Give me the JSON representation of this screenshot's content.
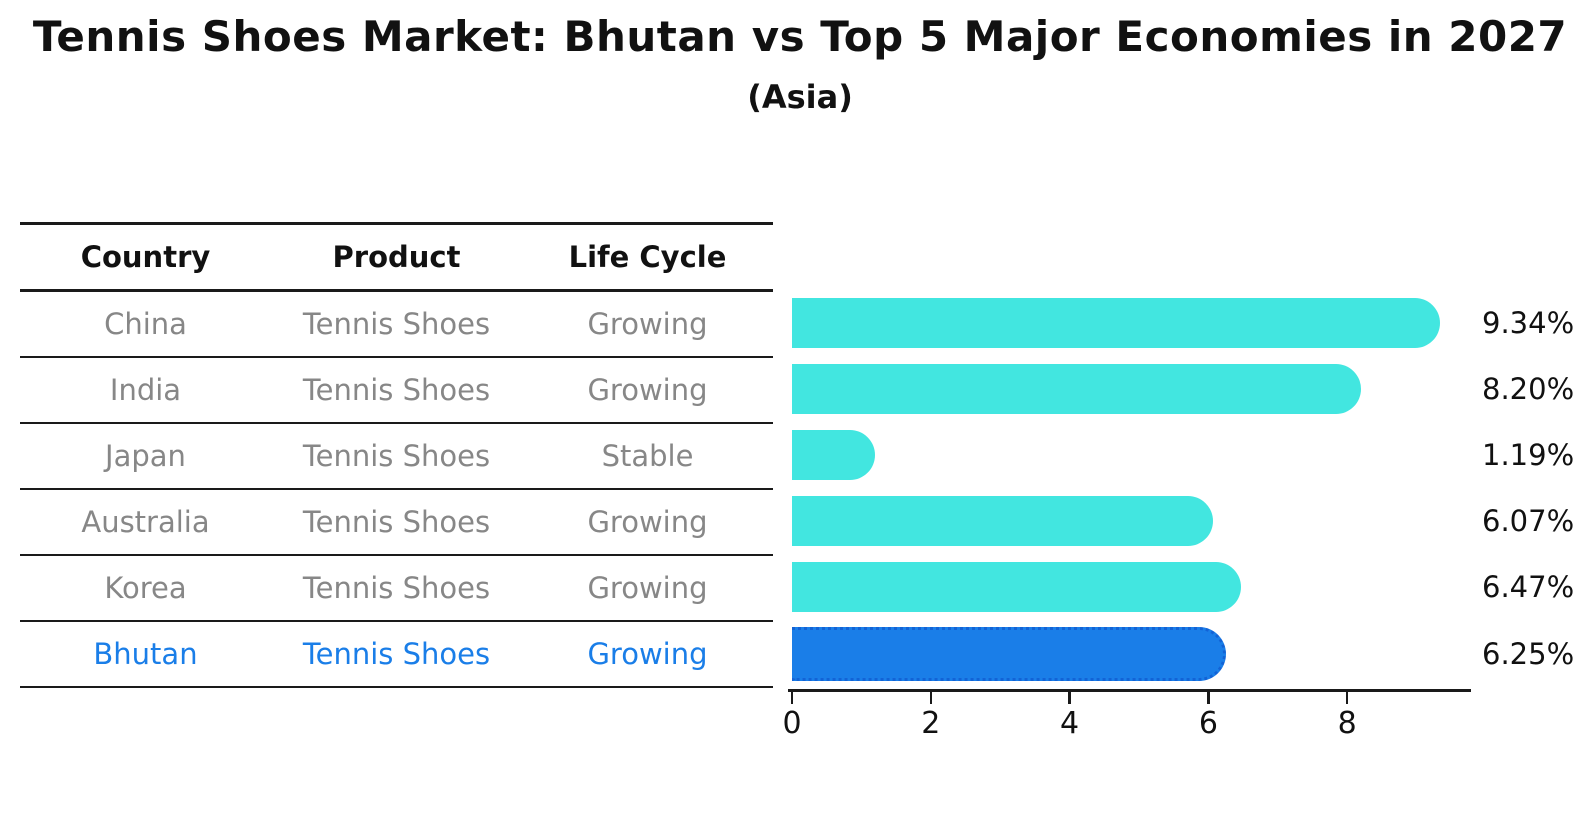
{
  "title": "Tennis Shoes Market: Bhutan vs Top 5 Major Economies in 2027",
  "subtitle": "(Asia)",
  "table": {
    "headers": [
      "Country",
      "Product",
      "Life Cycle"
    ],
    "rows": [
      {
        "country": "China",
        "product": "Tennis Shoes",
        "life_cycle": "Growing",
        "highlight": false
      },
      {
        "country": "India",
        "product": "Tennis Shoes",
        "life_cycle": "Growing",
        "highlight": false
      },
      {
        "country": "Japan",
        "product": "Tennis Shoes",
        "life_cycle": "Stable",
        "highlight": false
      },
      {
        "country": "Australia",
        "product": "Tennis Shoes",
        "life_cycle": "Growing",
        "highlight": false
      },
      {
        "country": "Korea",
        "product": "Tennis Shoes",
        "life_cycle": "Growing",
        "highlight": false
      },
      {
        "country": "Bhutan",
        "product": "Tennis Shoes",
        "life_cycle": "Growing",
        "highlight": true
      }
    ]
  },
  "chart_data": {
    "type": "bar",
    "orientation": "horizontal",
    "title": "Tennis Shoes Market: Bhutan vs Top 5 Major Economies in 2027",
    "subtitle": "(Asia)",
    "categories": [
      "China",
      "India",
      "Japan",
      "Australia",
      "Korea",
      "Bhutan"
    ],
    "values": [
      9.34,
      8.2,
      1.19,
      6.07,
      6.47,
      6.25
    ],
    "value_labels": [
      "9.34%",
      "8.20%",
      "1.19%",
      "6.07%",
      "6.47%",
      "6.25%"
    ],
    "x_ticks": [
      0,
      2,
      4,
      6,
      8
    ],
    "xlim": [
      0,
      9.77
    ],
    "grid": false,
    "legend": false,
    "highlight_index": 5
  },
  "colors": {
    "bar": "#42E6E0",
    "highlight_bar": "#1A7EE8",
    "highlight_border": "#1263D6",
    "highlight_text": "#1A7EE8",
    "row_text": "#878787",
    "header_text": "#111111",
    "axis": "#1a1a1a"
  }
}
